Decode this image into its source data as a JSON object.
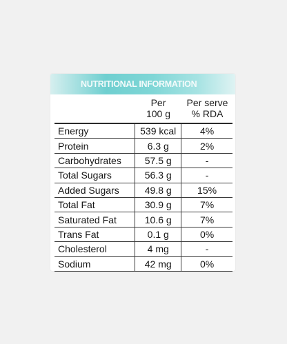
{
  "panel": {
    "title": "NUTRITIONAL INFORMATION",
    "banner_color": "#6fcfd0",
    "columns": {
      "per_100g_line1": "Per",
      "per_100g_line2": "100 g",
      "rda_line1": "Per serve",
      "rda_line2": "% RDA"
    },
    "rows": [
      {
        "name": "Energy",
        "per_100g": "539 kcal",
        "rda": "4%"
      },
      {
        "name": "Protein",
        "per_100g": "6.3 g",
        "rda": "2%"
      },
      {
        "name": "Carbohydrates",
        "per_100g": "57.5 g",
        "rda": "-"
      },
      {
        "name": "Total Sugars",
        "per_100g": "56.3 g",
        "rda": "-"
      },
      {
        "name": "Added Sugars",
        "per_100g": "49.8 g",
        "rda": "15%"
      },
      {
        "name": "Total Fat",
        "per_100g": "30.9 g",
        "rda": "7%"
      },
      {
        "name": "Saturated Fat",
        "per_100g": "10.6 g",
        "rda": "7%"
      },
      {
        "name": "Trans Fat",
        "per_100g": "0.1 g",
        "rda": "0%"
      },
      {
        "name": "Cholesterol",
        "per_100g": "4 mg",
        "rda": "-"
      },
      {
        "name": "Sodium",
        "per_100g": "42 mg",
        "rda": "0%"
      }
    ]
  }
}
